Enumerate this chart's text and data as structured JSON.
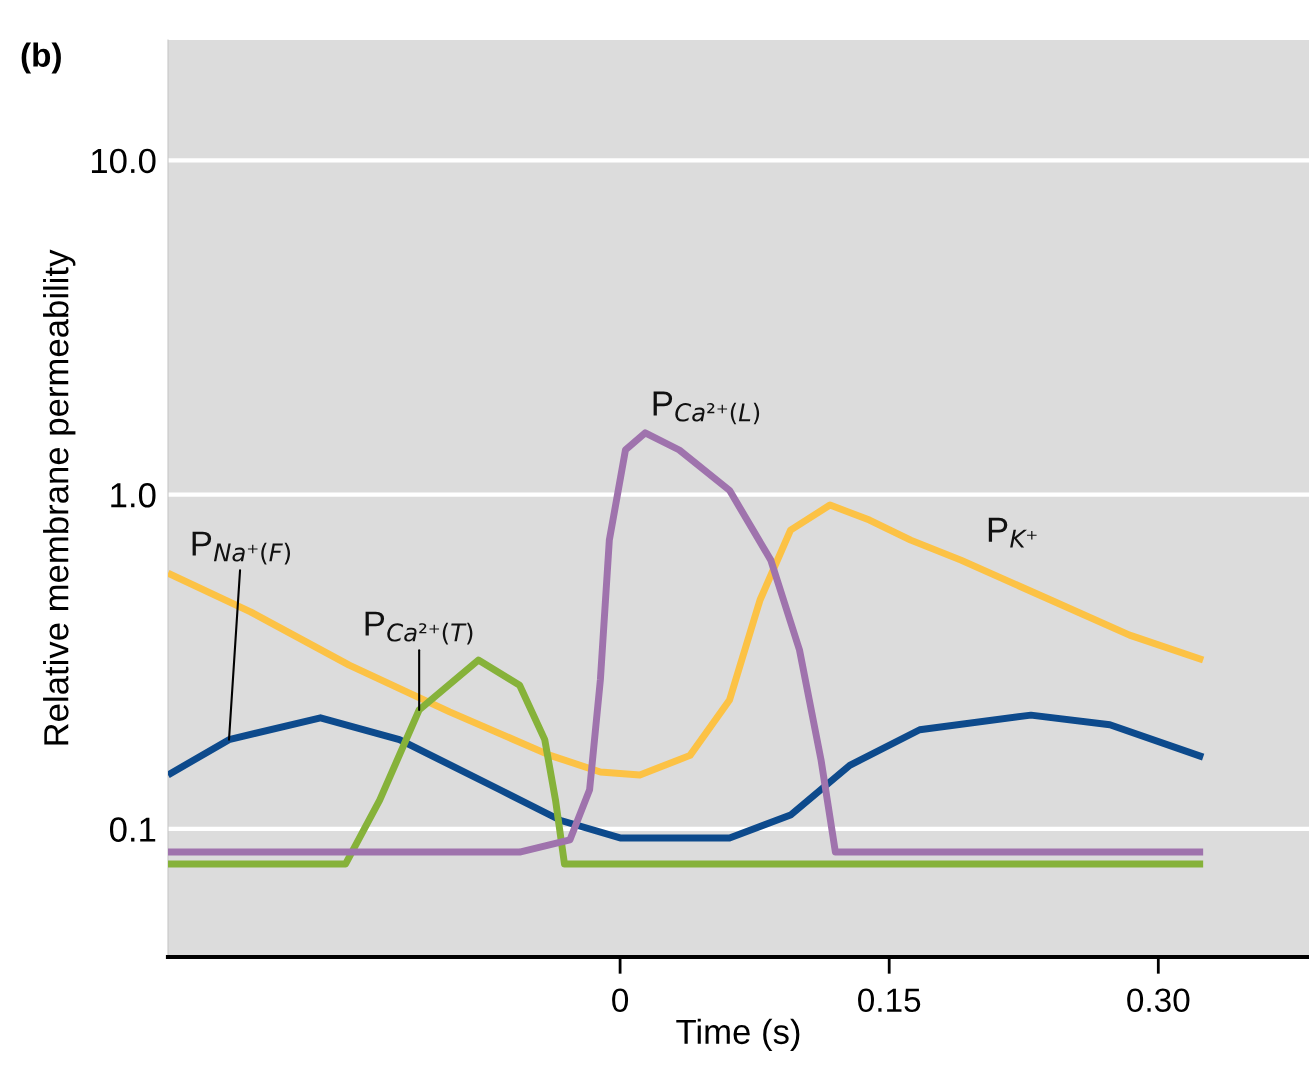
{
  "chart_data": {
    "type": "line",
    "title": "(b)",
    "xlabel": "Time (s)",
    "ylabel": "Relative membrane permeability",
    "log": "y",
    "grid": "y",
    "xlim": [
      -0.252,
      0.384
    ],
    "ylim": [
      0.0414,
      22.9
    ],
    "xticks": [
      {
        "value": 0,
        "label": "0"
      },
      0.15,
      {
        "value": 0.3,
        "label": "0.30"
      }
    ],
    "yticks": [
      {
        "value": 0.1,
        "label": "0.1"
      },
      {
        "value": 1,
        "label": "1.0"
      },
      {
        "value": 10,
        "label": "10.0"
      }
    ],
    "series": [
      {
        "name": "P$_{K⁺}$",
        "color": "#fcc245",
        "x": [
          -0.252,
          -0.206,
          -0.151,
          -0.095,
          -0.039,
          -0.011,
          0.011,
          0.039,
          0.061,
          0.078,
          0.095,
          0.117,
          0.139,
          0.162,
          0.19,
          0.24,
          0.284,
          0.325
        ],
        "values": [
          0.582,
          0.446,
          0.309,
          0.224,
          0.166,
          0.148,
          0.145,
          0.166,
          0.243,
          0.484,
          0.783,
          0.931,
          0.839,
          0.731,
          0.637,
          0.484,
          0.38,
          0.32
        ]
      },
      {
        "name": "P$_{Na⁺(F)}$",
        "color": "#0d4a8c",
        "x": [
          -0.252,
          -0.218,
          -0.167,
          -0.123,
          -0.067,
          -0.033,
          0,
          0.061,
          0.095,
          0.128,
          0.167,
          0.229,
          0.273,
          0.325
        ],
        "values": [
          0.145,
          0.185,
          0.215,
          0.185,
          0.131,
          0.106,
          0.094,
          0.094,
          0.11,
          0.155,
          0.198,
          0.219,
          0.205,
          0.164
        ]
      },
      {
        "name": "P$_{Ca²⁺(T)}$",
        "color": "#86b23a",
        "x": [
          -0.252,
          -0.153,
          -0.134,
          -0.112,
          -0.079,
          -0.056,
          -0.042,
          -0.036,
          -0.031,
          0.325
        ],
        "values": [
          0.0786,
          0.0786,
          0.122,
          0.227,
          0.32,
          0.269,
          0.185,
          0.122,
          0.0786,
          0.0786
        ]
      },
      {
        "name": "P$_{Ca²⁺(L)}$",
        "color": "#9f73ad",
        "x": [
          -0.252,
          -0.056,
          -0.028,
          -0.017,
          -0.011,
          -0.006,
          0.003,
          0.014,
          0.033,
          0.061,
          0.084,
          0.1,
          0.112,
          0.12,
          0.325
        ],
        "values": [
          0.0853,
          0.0853,
          0.0927,
          0.131,
          0.279,
          0.731,
          1.36,
          1.53,
          1.36,
          1.03,
          0.637,
          0.343,
          0.161,
          0.0853,
          0.0853
        ]
      }
    ]
  }
}
